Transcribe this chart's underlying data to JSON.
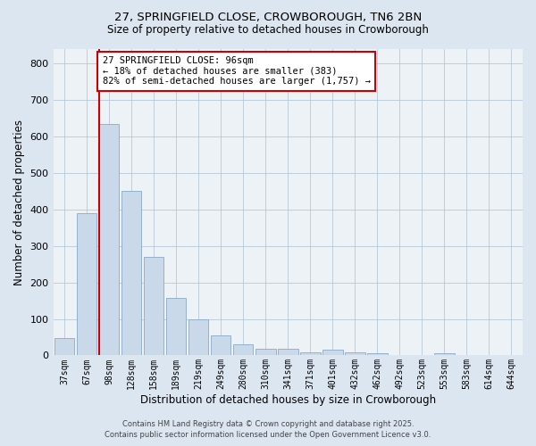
{
  "title1": "27, SPRINGFIELD CLOSE, CROWBOROUGH, TN6 2BN",
  "title2": "Size of property relative to detached houses in Crowborough",
  "xlabel": "Distribution of detached houses by size in Crowborough",
  "ylabel": "Number of detached properties",
  "categories": [
    "37sqm",
    "67sqm",
    "98sqm",
    "128sqm",
    "158sqm",
    "189sqm",
    "219sqm",
    "249sqm",
    "280sqm",
    "310sqm",
    "341sqm",
    "371sqm",
    "401sqm",
    "432sqm",
    "462sqm",
    "492sqm",
    "523sqm",
    "553sqm",
    "583sqm",
    "614sqm",
    "644sqm"
  ],
  "values": [
    48,
    390,
    635,
    450,
    270,
    157,
    100,
    55,
    30,
    17,
    17,
    8,
    15,
    8,
    5,
    2,
    1,
    5,
    1,
    1,
    1
  ],
  "bar_color": "#c9d9ea",
  "bar_edge_color": "#88aac8",
  "red_line_index": 2,
  "red_line_color": "#cc0000",
  "ylim": [
    0,
    840
  ],
  "yticks": [
    0,
    100,
    200,
    300,
    400,
    500,
    600,
    700,
    800
  ],
  "annotation_title": "27 SPRINGFIELD CLOSE: 96sqm",
  "annotation_line1": "← 18% of detached houses are smaller (383)",
  "annotation_line2": "82% of semi-detached houses are larger (1,757) →",
  "annotation_box_color": "#ffffff",
  "annotation_box_edge": "#cc0000",
  "footer1": "Contains HM Land Registry data © Crown copyright and database right 2025.",
  "footer2": "Contains public sector information licensed under the Open Government Licence v3.0.",
  "bg_color": "#dce6f0",
  "plot_bg_color": "#edf2f7",
  "grid_color": "#b8c8d8"
}
